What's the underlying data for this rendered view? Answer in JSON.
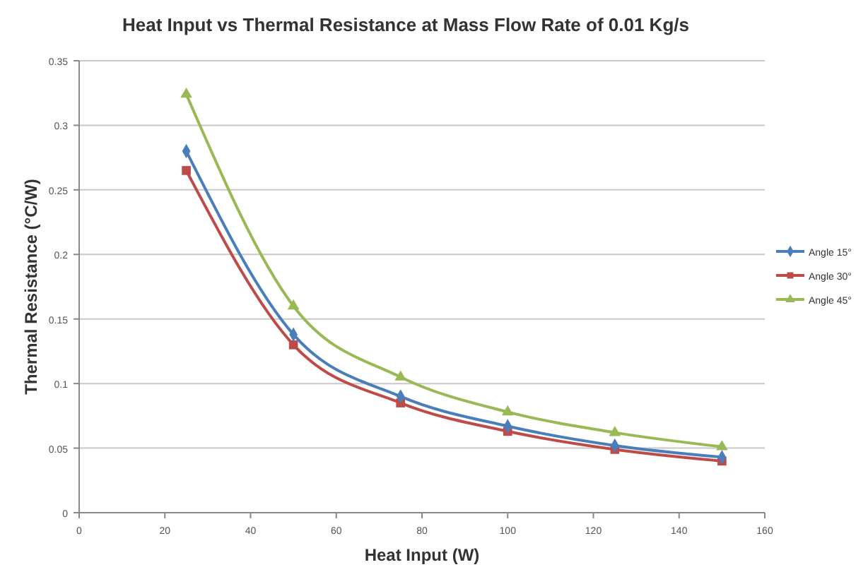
{
  "chart_data": {
    "type": "line",
    "title": "Heat Input vs Thermal Resistance at Mass Flow Rate of 0.01 Kg/s",
    "xlabel": "Heat Input (W)",
    "ylabel": "Thermal Resistance (°C/W)",
    "x": [
      25,
      50,
      75,
      100,
      125,
      150
    ],
    "series": [
      {
        "name": "Angle 15°",
        "color": "#4a7ebb",
        "marker": "diamond",
        "values": [
          0.28,
          0.138,
          0.09,
          0.067,
          0.052,
          0.043
        ]
      },
      {
        "name": "Angle 30°",
        "color": "#be4b48",
        "marker": "square",
        "values": [
          0.265,
          0.13,
          0.085,
          0.063,
          0.049,
          0.04
        ]
      },
      {
        "name": "Angle 45°",
        "color": "#98b954",
        "marker": "triangle",
        "values": [
          0.324,
          0.16,
          0.105,
          0.078,
          0.062,
          0.051
        ]
      }
    ],
    "xlim": [
      0,
      160
    ],
    "xticks": [
      0,
      20,
      40,
      60,
      80,
      100,
      120,
      140,
      160
    ],
    "ylim": [
      0,
      0.35
    ],
    "yticks": [
      0,
      0.05,
      0.1,
      0.15,
      0.2,
      0.25,
      0.3,
      0.35
    ],
    "grid": "y",
    "legend": "right",
    "line_style": "solid"
  }
}
